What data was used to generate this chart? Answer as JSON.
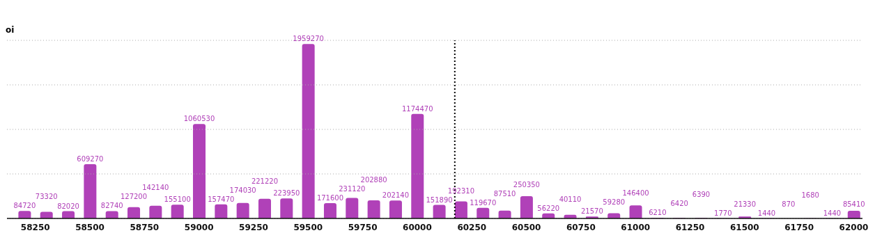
{
  "chart_data": {
    "type": "bar",
    "ylabel": "oi",
    "x": [
      58200,
      58300,
      58400,
      58500,
      58600,
      58700,
      58800,
      58900,
      59000,
      59100,
      59200,
      59300,
      59400,
      59500,
      59600,
      59700,
      59800,
      59900,
      60000,
      60100,
      60200,
      60300,
      60400,
      60500,
      60600,
      60700,
      60800,
      60900,
      61000,
      61100,
      61200,
      61300,
      61400,
      61500,
      61600,
      61700,
      61800,
      61900,
      62000
    ],
    "values": [
      84720,
      73320,
      82020,
      609270,
      82740,
      127200,
      142140,
      155100,
      1060530,
      157470,
      174030,
      221220,
      223950,
      1959270,
      171600,
      231120,
      202880,
      202140,
      1174470,
      151890,
      192310,
      119670,
      87510,
      250350,
      56220,
      40110,
      21570,
      59280,
      146400,
      6210,
      6420,
      6390,
      1770,
      21330,
      1440,
      870,
      1680,
      1440,
      85410
    ],
    "color": "#b041b8",
    "data_labels": true,
    "xlim": [
      58120,
      62040
    ],
    "xticks": [
      58250,
      58500,
      58750,
      59000,
      59250,
      59500,
      59750,
      60000,
      60250,
      60500,
      60750,
      61000,
      61250,
      61500,
      61750,
      62000
    ],
    "ylim": [
      0,
      2000000
    ],
    "yticks": [
      {
        "value": 0,
        "label": null
      },
      {
        "value": 500000,
        "label": null
      },
      {
        "value": 1000000,
        "label": null
      },
      {
        "value": 1500000,
        "label": null
      },
      {
        "value": 2000000,
        "label": null
      }
    ],
    "grid": "y",
    "tick_labels": "x",
    "ref_lines": [
      {
        "axis": "x",
        "value": 60172,
        "line_style": "dotted",
        "color": "#000000"
      }
    ]
  }
}
